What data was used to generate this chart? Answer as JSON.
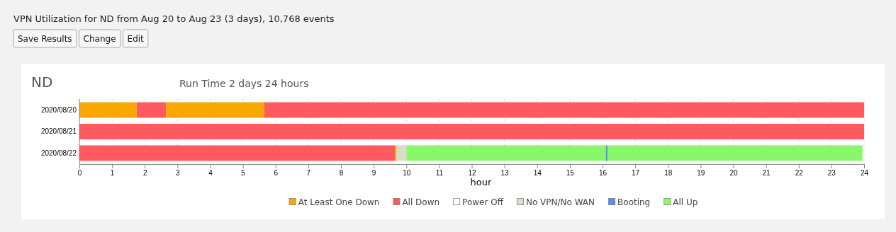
{
  "chart_data": {
    "type": "bar",
    "orientation": "horizontal",
    "stacked": true,
    "title": "VPN Utilization for ND from Aug 20 to Aug 23 (3 days), 10,768 events",
    "subtitle": "Run Time 2 days 24 hours",
    "annotations": [
      "Save Results",
      "Change",
      "Edit",
      "ND"
    ],
    "categories": [
      "2020/08/20",
      "2020/08/21",
      "2020/08/22"
    ],
    "xlabel": "hour",
    "xlim": [
      0,
      24
    ],
    "xticks": [
      0,
      1,
      2,
      3,
      4,
      5,
      6,
      7,
      8,
      9,
      10,
      11,
      12,
      13,
      14,
      15,
      16,
      17,
      18,
      19,
      20,
      21,
      22,
      23,
      24
    ],
    "grid": "x",
    "legend": "bottom",
    "series": [
      {
        "name": "At Least One Down",
        "color": "#f8a800",
        "values": [
          1.75,
          null,
          null
        ]
      },
      {
        "name": "All Down",
        "color": "#ff5a5f",
        "values": [
          0.9,
          24,
          9.65
        ]
      },
      {
        "name": "Power Off",
        "color": "#ffffff",
        "values": [
          null,
          null,
          null
        ]
      },
      {
        "color": "#f8a800",
        "values": [
          3.0,
          null,
          0.05
        ]
      },
      {
        "name": "No VPN/No WAN",
        "color": "#d9dcc9",
        "values": [
          null,
          null,
          0.3
        ]
      },
      {
        "color": "#88f86a",
        "values": [
          null,
          null,
          6.1
        ]
      },
      {
        "name": "Booting",
        "color": "#5b8ee6",
        "values": [
          null,
          null,
          0.05
        ]
      },
      {
        "name": "All Up",
        "color": "#88f86a",
        "values": [
          null,
          null,
          7.8
        ]
      },
      {
        "color": "#ff5a5f",
        "values": [
          18.35,
          null,
          null
        ]
      }
    ]
  }
}
